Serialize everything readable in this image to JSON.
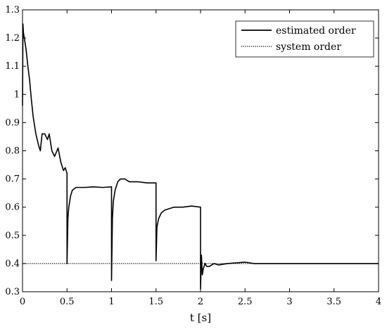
{
  "chart_data": {
    "type": "line",
    "title": "",
    "xlabel": "t [s]",
    "ylabel": "",
    "xlim": [
      0,
      4
    ],
    "ylim": [
      0.3,
      1.3
    ],
    "x_ticks": [
      0,
      0.5,
      1,
      1.5,
      2,
      2.5,
      3,
      3.5,
      4
    ],
    "x_tick_labels": [
      "0",
      "0.5",
      "1",
      "1.5",
      "2",
      "2.5",
      "3",
      "3.5",
      "4"
    ],
    "y_ticks": [
      0.3,
      0.4,
      0.5,
      0.6,
      0.7,
      0.8,
      0.9,
      1,
      1.1,
      1.2,
      1.3
    ],
    "y_tick_labels": [
      "0.3",
      "0.4",
      "0.5",
      "0.6",
      "0.7",
      "0.8",
      "0.9",
      "1",
      "1.1",
      "1.2",
      "1.3"
    ],
    "grid": false,
    "legend_position": "top-right",
    "series": [
      {
        "name": "estimated order",
        "style": "solid",
        "color": "#000000",
        "x": [
          0,
          0.005,
          0.01,
          0.02,
          0.04,
          0.06,
          0.08,
          0.1,
          0.12,
          0.15,
          0.18,
          0.2,
          0.22,
          0.25,
          0.28,
          0.3,
          0.33,
          0.36,
          0.4,
          0.43,
          0.46,
          0.48,
          0.5,
          0.5,
          0.51,
          0.52,
          0.54,
          0.56,
          0.6,
          0.65,
          0.7,
          0.8,
          0.9,
          1.0,
          1.0,
          1.01,
          1.02,
          1.04,
          1.07,
          1.1,
          1.15,
          1.2,
          1.3,
          1.4,
          1.5,
          1.5,
          1.51,
          1.53,
          1.56,
          1.6,
          1.65,
          1.7,
          1.8,
          1.9,
          2.0,
          2.0,
          2.01,
          2.02,
          2.03,
          2.05,
          2.07,
          2.1,
          2.15,
          2.2,
          2.3,
          2.5,
          2.6,
          3.0,
          3.5,
          4.0
        ],
        "y": [
          0.96,
          1.25,
          1.22,
          1.2,
          1.16,
          1.1,
          1.05,
          0.98,
          0.92,
          0.86,
          0.82,
          0.8,
          0.86,
          0.86,
          0.84,
          0.86,
          0.8,
          0.78,
          0.81,
          0.76,
          0.73,
          0.74,
          0.72,
          0.4,
          0.56,
          0.6,
          0.64,
          0.66,
          0.67,
          0.67,
          0.67,
          0.672,
          0.67,
          0.672,
          0.34,
          0.56,
          0.62,
          0.66,
          0.69,
          0.7,
          0.7,
          0.69,
          0.69,
          0.686,
          0.686,
          0.41,
          0.53,
          0.56,
          0.58,
          0.59,
          0.595,
          0.6,
          0.6,
          0.604,
          0.6,
          0.31,
          0.43,
          0.36,
          0.38,
          0.4,
          0.39,
          0.39,
          0.4,
          0.395,
          0.4,
          0.405,
          0.4,
          0.4,
          0.4,
          0.4
        ]
      },
      {
        "name": "system order",
        "style": "dotted",
        "color": "#000000",
        "x": [
          0,
          4
        ],
        "y": [
          0.4,
          0.4
        ]
      }
    ]
  }
}
